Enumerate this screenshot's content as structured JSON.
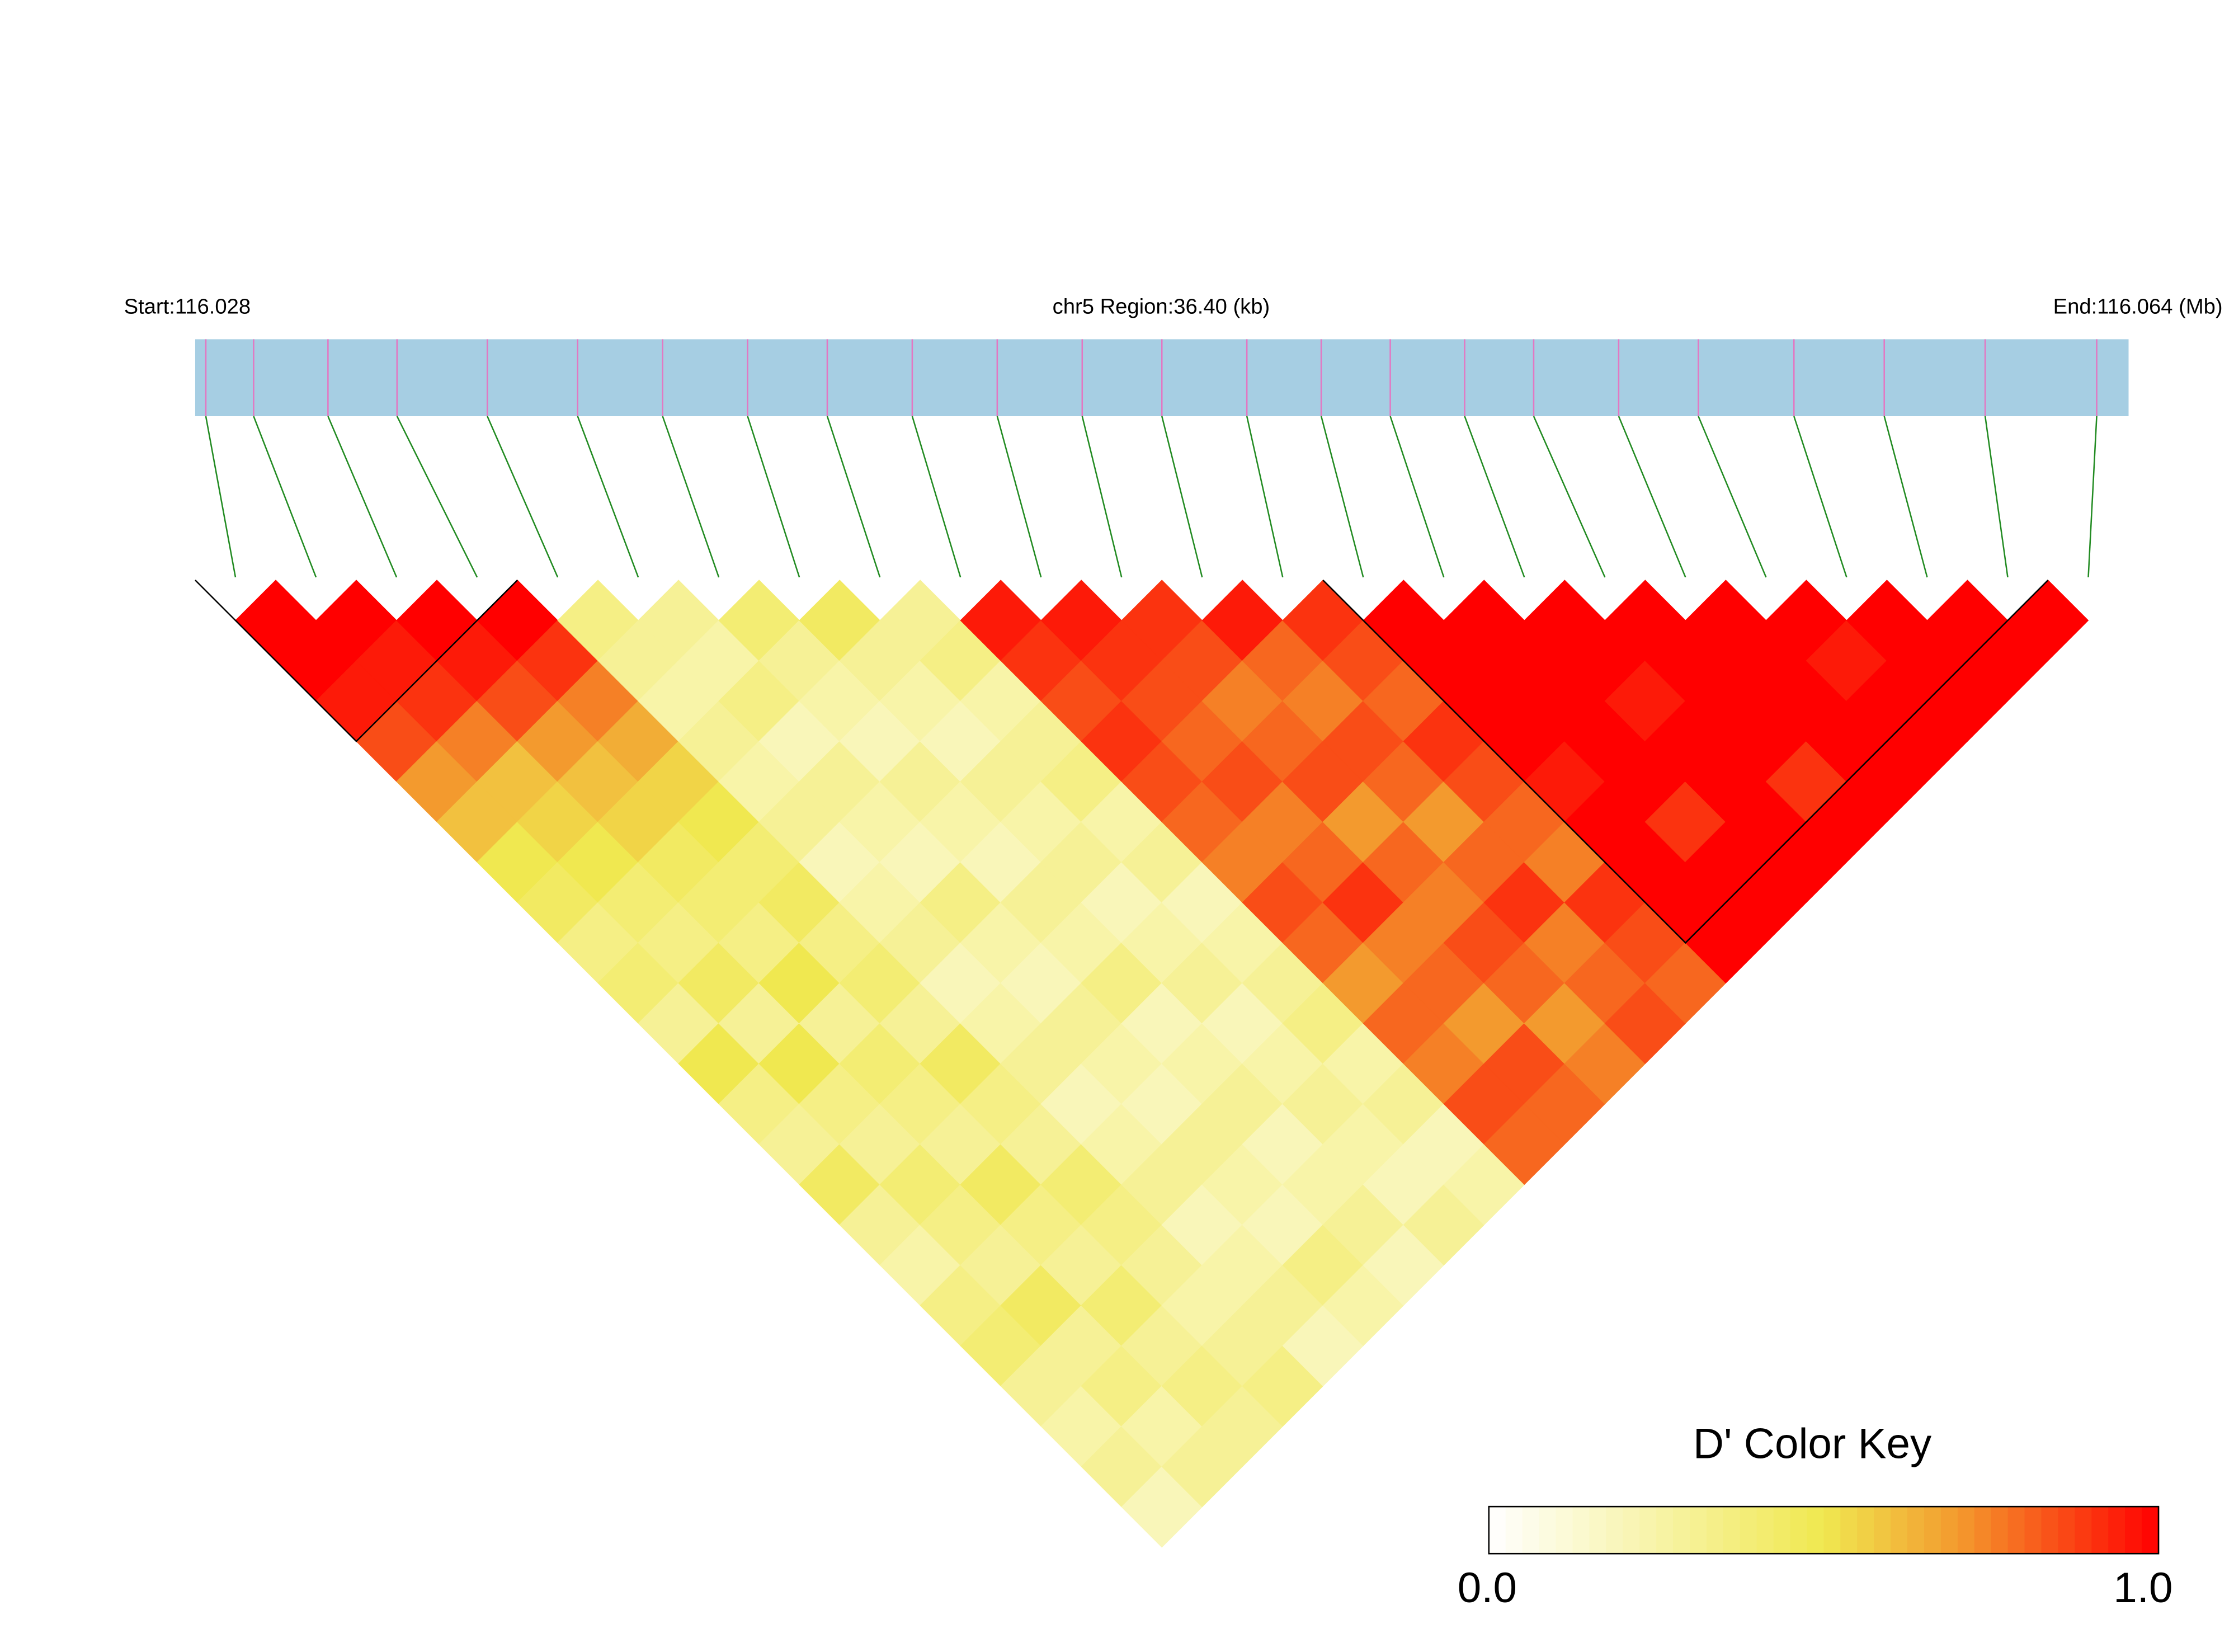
{
  "chart_data": {
    "type": "ld-heatmap",
    "start_label": "Start:116.028",
    "region_label": "chr5 Region:36.40 (kb)",
    "end_label": "End:116.064 (Mb)",
    "xlim": [
      116.028,
      116.0644
    ],
    "x": [
      116.0282,
      116.0291,
      116.0305,
      116.0318,
      116.0335,
      116.0352,
      116.0368,
      116.0384,
      116.0399,
      116.0415,
      116.0431,
      116.0447,
      116.0462,
      116.0478,
      116.0492,
      116.0505,
      116.0519,
      116.0532,
      116.0548,
      116.0563,
      116.0581,
      116.0598,
      116.0617,
      116.0638
    ],
    "values": [
      [
        1,
        1,
        0.95,
        0.85,
        0.7,
        0.6,
        0.5,
        0.45,
        0.35,
        0.4,
        0.3,
        0.5,
        0.35,
        0.3,
        0.45,
        0.3,
        0.25,
        0.35,
        0.4,
        0.3,
        0.25,
        0.3,
        0.2
      ],
      [
        1,
        0.95,
        0.9,
        0.75,
        0.6,
        0.55,
        0.5,
        0.4,
        0.35,
        0.45,
        0.3,
        0.5,
        0.35,
        0.3,
        0.4,
        0.35,
        0.3,
        0.45,
        0.3,
        0.35,
        0.25,
        0.3
      ],
      [
        1,
        0.95,
        0.85,
        0.7,
        0.6,
        0.55,
        0.45,
        0.4,
        0.35,
        0.5,
        0.3,
        0.4,
        0.35,
        0.3,
        0.45,
        0.35,
        0.3,
        0.4,
        0.3,
        0.35,
        0.3
      ],
      [
        1,
        0.9,
        0.75,
        0.65,
        0.55,
        0.5,
        0.4,
        0.45,
        0.35,
        0.4,
        0.3,
        0.45,
        0.35,
        0.3,
        0.4,
        0.35,
        0.3,
        0.25,
        0.3,
        0.35
      ],
      [
        0.35,
        0.3,
        0.25,
        0.3,
        0.25,
        0.3,
        0.2,
        0.25,
        0.3,
        0.2,
        0.25,
        0.3,
        0.2,
        0.25,
        0.3,
        0.2,
        0.25,
        0.3,
        0.2
      ],
      [
        0.3,
        0.25,
        0.35,
        0.2,
        0.3,
        0.25,
        0.2,
        0.35,
        0.25,
        0.2,
        0.3,
        0.25,
        0.2,
        0.3,
        0.25,
        0.2,
        0.35,
        0.25
      ],
      [
        0.4,
        0.3,
        0.25,
        0.2,
        0.3,
        0.25,
        0.2,
        0.3,
        0.25,
        0.35,
        0.2,
        0.25,
        0.3,
        0.2,
        0.25,
        0.3,
        0.2
      ],
      [
        0.45,
        0.3,
        0.25,
        0.2,
        0.3,
        0.25,
        0.3,
        0.2,
        0.25,
        0.3,
        0.2,
        0.25,
        0.3,
        0.25,
        0.2,
        0.3
      ],
      [
        0.3,
        0.35,
        0.25,
        0.3,
        0.35,
        0.25,
        0.3,
        0.2,
        0.25,
        0.3,
        0.35,
        0.25,
        0.3,
        0.2,
        0.25
      ],
      [
        0.95,
        0.9,
        0.85,
        0.9,
        0.85,
        0.8,
        0.75,
        0.85,
        0.8,
        0.7,
        0.8,
        0.75,
        0.85,
        0.8
      ],
      [
        0.95,
        0.9,
        0.85,
        0.8,
        0.85,
        0.75,
        0.8,
        0.9,
        0.75,
        0.8,
        0.7,
        0.85,
        0.8
      ],
      [
        0.9,
        0.85,
        0.75,
        0.8,
        0.85,
        0.7,
        0.8,
        0.75,
        0.85,
        0.8,
        0.7,
        0.75
      ],
      [
        0.95,
        0.8,
        0.75,
        0.85,
        0.8,
        0.7,
        0.8,
        0.9,
        0.75,
        0.8,
        0.85
      ],
      [
        0.9,
        0.85,
        0.8,
        0.9,
        0.85,
        0.8,
        0.75,
        0.9,
        0.85,
        0.8
      ],
      [
        1,
        1,
        1,
        1,
        0.95,
        1,
        1,
        1,
        1
      ],
      [
        1,
        1,
        1,
        1,
        1,
        0.9,
        1,
        1
      ],
      [
        1,
        1,
        0.95,
        1,
        1,
        1,
        1
      ],
      [
        1,
        1,
        1,
        1,
        0.9,
        1
      ],
      [
        1,
        1,
        1,
        1,
        1
      ],
      [
        1,
        0.95,
        1,
        1
      ],
      [
        1,
        1,
        1
      ],
      [
        1,
        1
      ],
      [
        1
      ]
    ],
    "blocks": [
      [
        0,
        3
      ],
      [
        14,
        22
      ]
    ],
    "bar_color": "#a6cee3",
    "snp_color": "#e377c2",
    "connector_color": "#228b22",
    "colormap": [
      [
        0,
        "#ffffff"
      ],
      [
        0.5,
        "#f0e850"
      ],
      [
        0.7,
        "#f39a2e"
      ],
      [
        1,
        "#ff0000"
      ]
    ],
    "color_key": {
      "title": "D' Color Key",
      "clim": [
        0,
        1
      ],
      "ticks": [
        {
          "value": 0,
          "label": "0.0"
        },
        {
          "value": 1,
          "label": "1.0"
        }
      ]
    }
  }
}
